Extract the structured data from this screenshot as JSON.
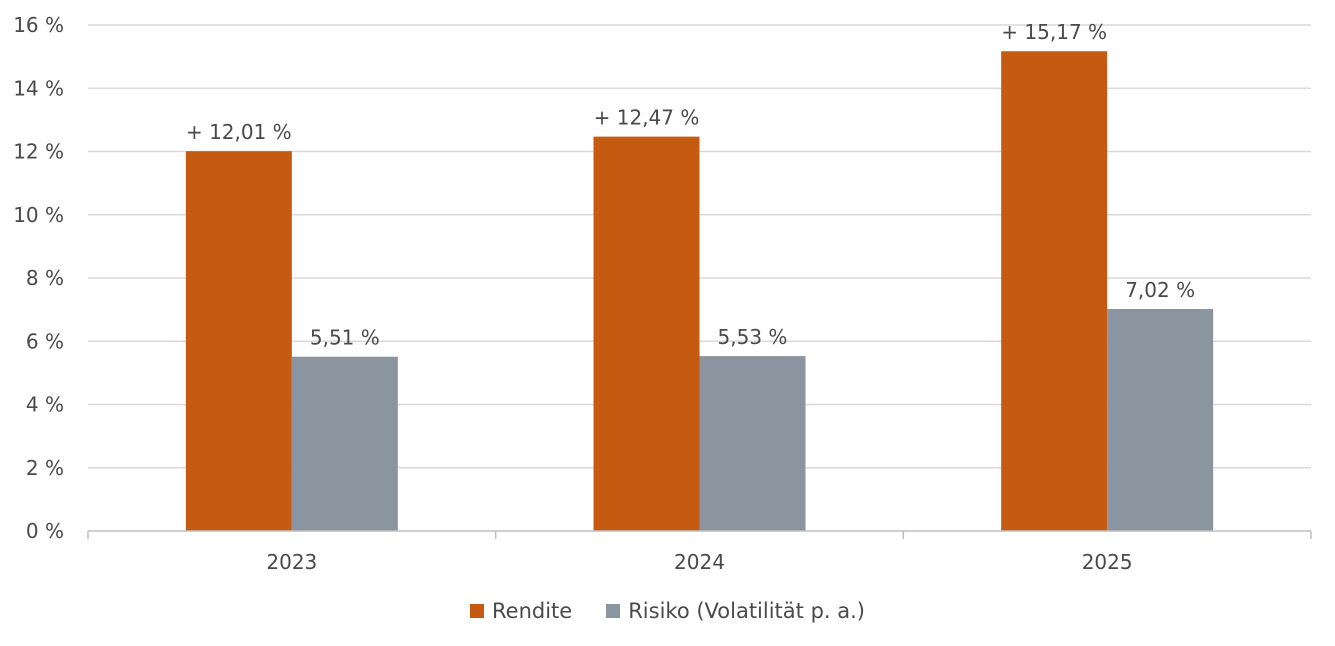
{
  "chart_data": {
    "type": "bar",
    "categories": [
      "2023",
      "2024",
      "2025"
    ],
    "series": [
      {
        "name": "Rendite",
        "values": [
          12.01,
          12.47,
          15.17
        ],
        "color": "#c55a11",
        "labels": [
          "+ 12,01 %",
          "+ 12,47 %",
          "+ 15,17 %"
        ]
      },
      {
        "name": "Risiko (Volatilität p. a.)",
        "values": [
          5.51,
          5.53,
          7.02
        ],
        "color": "#8a959f",
        "labels": [
          "5,51 %",
          "5,53 %",
          "7,02 %"
        ]
      }
    ],
    "yticks": [
      0,
      2,
      4,
      6,
      8,
      10,
      12,
      14,
      16
    ],
    "ytick_labels": [
      "0 %",
      "2 %",
      "4 %",
      "6 %",
      "8 %",
      "10 %",
      "12 %",
      "14 %",
      "16 %"
    ],
    "ylim": [
      0,
      16
    ],
    "grid": true,
    "legend_position": "bottom"
  }
}
